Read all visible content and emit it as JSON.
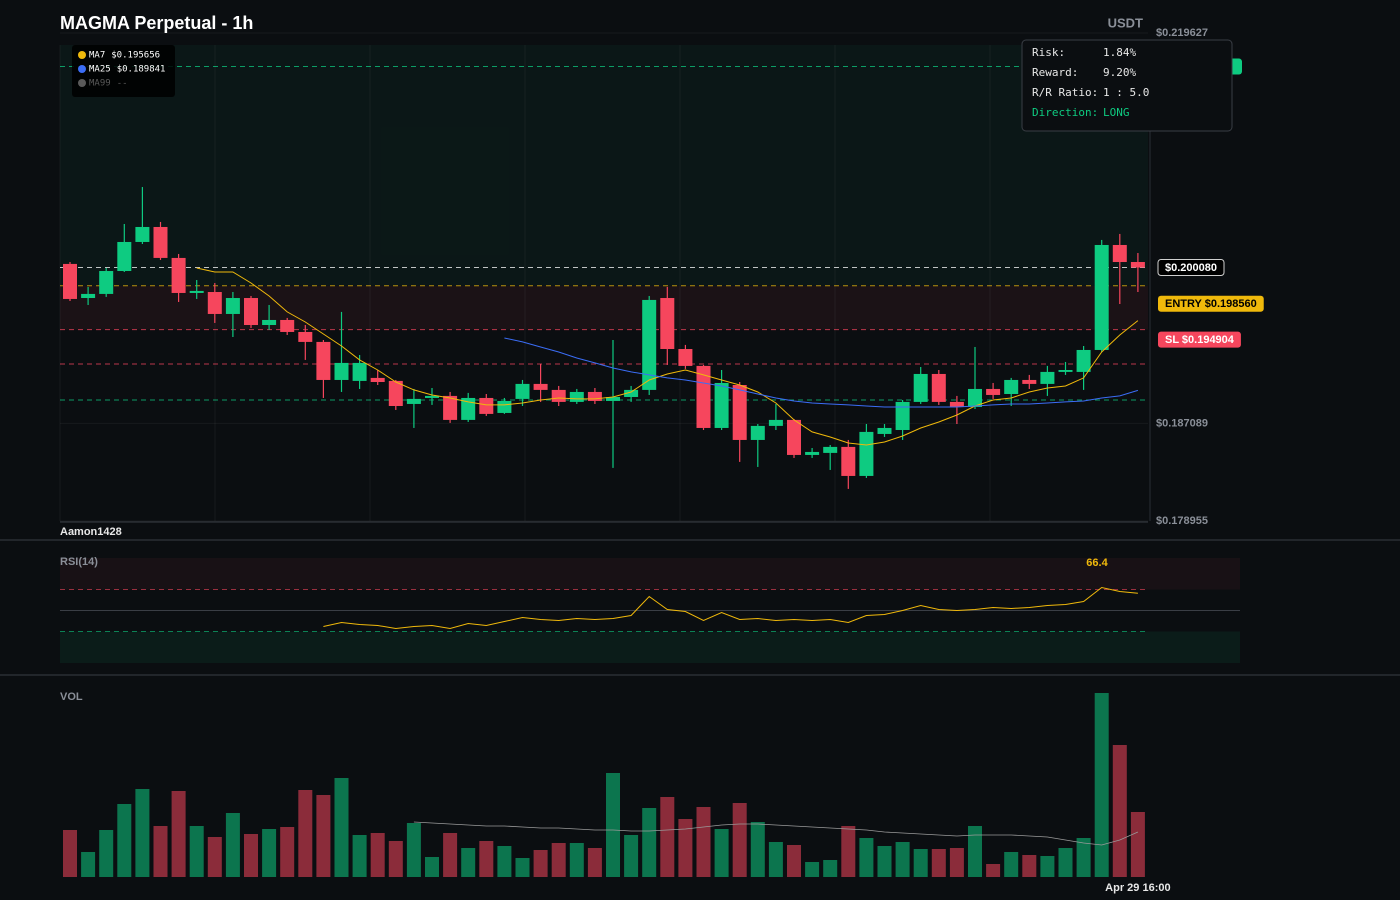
{
  "chart_data": {
    "type": "candlestick",
    "title": "MAGMA Perpetual - 1h",
    "currency": "USDT",
    "watermark": "Aamon1428",
    "categories": [
      null,
      null,
      null,
      null,
      null,
      null,
      null,
      null,
      null,
      null,
      null,
      null,
      null,
      null,
      null,
      null,
      null,
      null,
      null,
      null,
      null,
      null,
      null,
      null,
      null,
      null,
      null,
      null,
      null,
      null,
      null,
      null,
      null,
      null,
      null,
      null,
      null,
      null,
      null,
      null,
      null,
      null,
      null,
      null,
      null,
      null,
      null,
      null,
      null,
      null,
      null,
      null,
      null,
      null,
      null,
      null,
      null,
      null,
      null,
      "Apr 29 16:00"
    ],
    "open": [
      0.20038,
      0.19754,
      0.19788,
      0.19979,
      0.20221,
      0.20346,
      0.20088,
      0.19796,
      0.19804,
      0.19621,
      0.19754,
      0.19529,
      0.19571,
      0.19471,
      0.19388,
      0.19071,
      0.19063,
      0.19088,
      0.19063,
      0.18871,
      0.18921,
      0.18938,
      0.18738,
      0.18921,
      0.18796,
      0.18913,
      0.19038,
      0.18988,
      0.18888,
      0.18971,
      0.18896,
      0.18929,
      0.18988,
      0.19754,
      0.19329,
      0.19188,
      0.18671,
      0.19029,
      0.18571,
      0.18688,
      0.18738,
      0.18446,
      0.18463,
      0.18513,
      0.18271,
      0.18621,
      0.18654,
      0.18888,
      0.19121,
      0.18888,
      0.18846,
      0.18996,
      0.18954,
      0.19071,
      0.19038,
      0.19138,
      0.19138,
      0.19321,
      0.20196,
      0.20054
    ],
    "high": [
      0.20054,
      0.19846,
      0.20004,
      0.20371,
      0.20679,
      0.20388,
      0.20121,
      0.19904,
      0.19879,
      0.19804,
      0.19771,
      0.19696,
      0.19588,
      0.19529,
      0.19404,
      0.19638,
      0.19279,
      0.19154,
      0.19071,
      0.18996,
      0.19004,
      0.18971,
      0.18963,
      0.18954,
      0.18921,
      0.19071,
      0.19204,
      0.19021,
      0.18996,
      0.19004,
      0.19404,
      0.19021,
      0.19771,
      0.19846,
      0.19363,
      0.19196,
      0.19154,
      0.19054,
      0.18704,
      0.18871,
      0.18746,
      0.18504,
      0.18529,
      0.18571,
      0.18704,
      0.18704,
      0.18904,
      0.19179,
      0.19154,
      0.18938,
      0.19346,
      0.19046,
      0.19088,
      0.19113,
      0.19188,
      0.19221,
      0.19354,
      0.20238,
      0.20288,
      0.20129
    ],
    "low": [
      0.19729,
      0.19696,
      0.19763,
      0.19971,
      0.20204,
      0.20071,
      0.19721,
      0.19746,
      0.19546,
      0.19429,
      0.19504,
      0.19488,
      0.19446,
      0.19238,
      0.18921,
      0.18971,
      0.18996,
      0.19029,
      0.18821,
      0.18671,
      0.18863,
      0.18713,
      0.18721,
      0.18771,
      0.18788,
      0.18854,
      0.18888,
      0.18854,
      0.18871,
      0.18871,
      0.18338,
      0.18888,
      0.18946,
      0.19196,
      0.19163,
      0.18654,
      0.18654,
      0.18388,
      0.18346,
      0.18654,
      0.18421,
      0.18421,
      0.18321,
      0.18163,
      0.18254,
      0.18596,
      0.18571,
      0.18871,
      0.18863,
      0.18704,
      0.18829,
      0.18913,
      0.18854,
      0.18996,
      0.18938,
      0.19113,
      0.18988,
      0.19304,
      0.19704,
      0.19804
    ],
    "close": [
      0.19746,
      0.19788,
      0.19979,
      0.20221,
      0.20346,
      0.20088,
      0.19796,
      0.19813,
      0.19621,
      0.19754,
      0.19529,
      0.19571,
      0.19471,
      0.19388,
      0.19071,
      0.19213,
      0.19213,
      0.19054,
      0.18854,
      0.18913,
      0.18938,
      0.18738,
      0.18921,
      0.18788,
      0.18896,
      0.19038,
      0.18988,
      0.18888,
      0.18971,
      0.18896,
      0.18929,
      0.18988,
      0.19738,
      0.19329,
      0.19188,
      0.18671,
      0.19046,
      0.18571,
      0.18688,
      0.18738,
      0.18446,
      0.18471,
      0.18513,
      0.18271,
      0.18638,
      0.18671,
      0.18888,
      0.19121,
      0.18888,
      0.18846,
      0.18996,
      0.18946,
      0.19071,
      0.19038,
      0.19138,
      0.19154,
      0.19321,
      0.20196,
      0.20054,
      0.20008
    ],
    "up_color": "#0ecb81",
    "down_color": "#f6465d",
    "ylim": [
      0.178955,
      0.219627
    ],
    "yticks": [
      {
        "value": 0.219627,
        "label": "$0.219627"
      },
      {
        "value": 0.187089,
        "label": "$0.187089"
      },
      {
        "value": 0.178955,
        "label": "$0.178955"
      }
    ],
    "grid": true,
    "moving_averages": [
      {
        "name": "MA7",
        "color": "#f0b90b",
        "last_label": "$0.195656",
        "values": [
          null,
          null,
          null,
          null,
          null,
          null,
          null,
          0.20004,
          0.19971,
          0.19971,
          0.19879,
          0.19771,
          0.19638,
          0.19554,
          0.19454,
          0.19354,
          0.19238,
          0.19154,
          0.19054,
          0.18988,
          0.18946,
          0.18921,
          0.18888,
          0.18863,
          0.18863,
          0.18879,
          0.18904,
          0.18921,
          0.18913,
          0.18913,
          0.18929,
          0.18971,
          0.19071,
          0.19121,
          0.19154,
          0.19113,
          0.19071,
          0.19029,
          0.18971,
          0.18879,
          0.18738,
          0.18638,
          0.18596,
          0.18546,
          0.18529,
          0.18554,
          0.18604,
          0.18671,
          0.18721,
          0.18779,
          0.18854,
          0.18904,
          0.18921,
          0.18971,
          0.19004,
          0.19021,
          0.19088,
          0.19304,
          0.19446,
          0.195656
        ]
      },
      {
        "name": "MA25",
        "color": "#3b6df6",
        "last_label": "$0.189841",
        "values": [
          null,
          null,
          null,
          null,
          null,
          null,
          null,
          null,
          null,
          null,
          null,
          null,
          null,
          null,
          null,
          null,
          null,
          null,
          null,
          null,
          null,
          null,
          null,
          null,
          0.19421,
          0.19388,
          0.19346,
          0.19304,
          0.19254,
          0.19213,
          0.19171,
          0.19138,
          0.19113,
          0.19088,
          0.19071,
          0.19046,
          0.19021,
          0.18988,
          0.18954,
          0.18921,
          0.18896,
          0.18879,
          0.18871,
          0.18863,
          0.18854,
          0.18846,
          0.18846,
          0.18846,
          0.18846,
          0.18846,
          0.18854,
          0.18863,
          0.18871,
          0.18871,
          0.18879,
          0.18888,
          0.18896,
          0.18921,
          0.18938,
          0.189841
        ]
      },
      {
        "name": "MA99",
        "color": "#5a5a5a",
        "last_label": "--"
      }
    ],
    "take_profit": {
      "value": 0.21683,
      "color": "#0ecb81"
    },
    "entry": {
      "value": 0.19856,
      "label": "ENTRY $0.198560",
      "color": "#f0b90b"
    },
    "stop_loss": {
      "value": 0.194904,
      "label": "SL $0.194904",
      "color": "#f6465d"
    },
    "current_price": {
      "value": 0.20008,
      "label": "$0.200080",
      "color": "#ffffff"
    },
    "extra_levels": [
      {
        "value": 0.19204,
        "color": "#f6465d"
      },
      {
        "value": 0.18904,
        "color": "#0ecb81"
      }
    ],
    "trade_panel": [
      {
        "label": "Risk:",
        "value": "1.84%"
      },
      {
        "label": "Reward:",
        "value": "9.20%"
      },
      {
        "label": "R/R Ratio:",
        "value": "1 : 5.0"
      },
      {
        "label": "Direction:",
        "value": "LONG"
      }
    ],
    "rsi": {
      "label": "RSI(14)",
      "color": "#f0b90b",
      "ylim": [
        0,
        100
      ],
      "overbought": 70,
      "oversold": 30,
      "midline": 50,
      "values": [
        null,
        null,
        null,
        null,
        null,
        null,
        null,
        null,
        null,
        null,
        null,
        null,
        null,
        null,
        34.8,
        38.6,
        36.7,
        35.7,
        32.9,
        34.8,
        35.7,
        32.9,
        37.6,
        35.7,
        39.5,
        43.3,
        41.4,
        40.5,
        42.4,
        41.4,
        42.4,
        45.2,
        63.3,
        51.0,
        49.0,
        40.5,
        48.1,
        41.4,
        42.4,
        40.5,
        41.4,
        40.5,
        41.4,
        38.6,
        45.2,
        46.2,
        50.0,
        54.8,
        51.0,
        50.0,
        51.0,
        52.9,
        51.9,
        52.9,
        54.8,
        55.7,
        58.6,
        71.9,
        68.1,
        66.4
      ]
    },
    "volume": {
      "label": "VOL",
      "ylim": [
        0,
        200
      ],
      "values": [
        47,
        25,
        47,
        73,
        88,
        51,
        86,
        51,
        40,
        64,
        43,
        48,
        50,
        87,
        82,
        99,
        42,
        44,
        36,
        54,
        20,
        44,
        29,
        36,
        31,
        19,
        27,
        34,
        34,
        29,
        104,
        42,
        69,
        80,
        58,
        70,
        48,
        74,
        55,
        35,
        32,
        15,
        17,
        51,
        39,
        31,
        35,
        28,
        28,
        29,
        51,
        13,
        25,
        22,
        21,
        29,
        39,
        184,
        132,
        65
      ],
      "ma_color": "#9a9a9a",
      "ma": [
        null,
        null,
        null,
        null,
        null,
        null,
        null,
        null,
        null,
        null,
        null,
        null,
        null,
        null,
        null,
        null,
        null,
        null,
        null,
        55,
        54,
        53,
        52,
        51,
        51,
        50,
        49,
        49,
        48,
        47,
        47,
        46,
        46,
        47,
        48,
        50,
        52,
        53,
        53,
        52,
        51,
        50,
        49,
        48,
        47,
        45,
        44,
        43,
        42,
        41,
        42,
        42,
        42,
        41,
        40,
        37,
        34,
        32,
        37,
        45
      ]
    }
  }
}
